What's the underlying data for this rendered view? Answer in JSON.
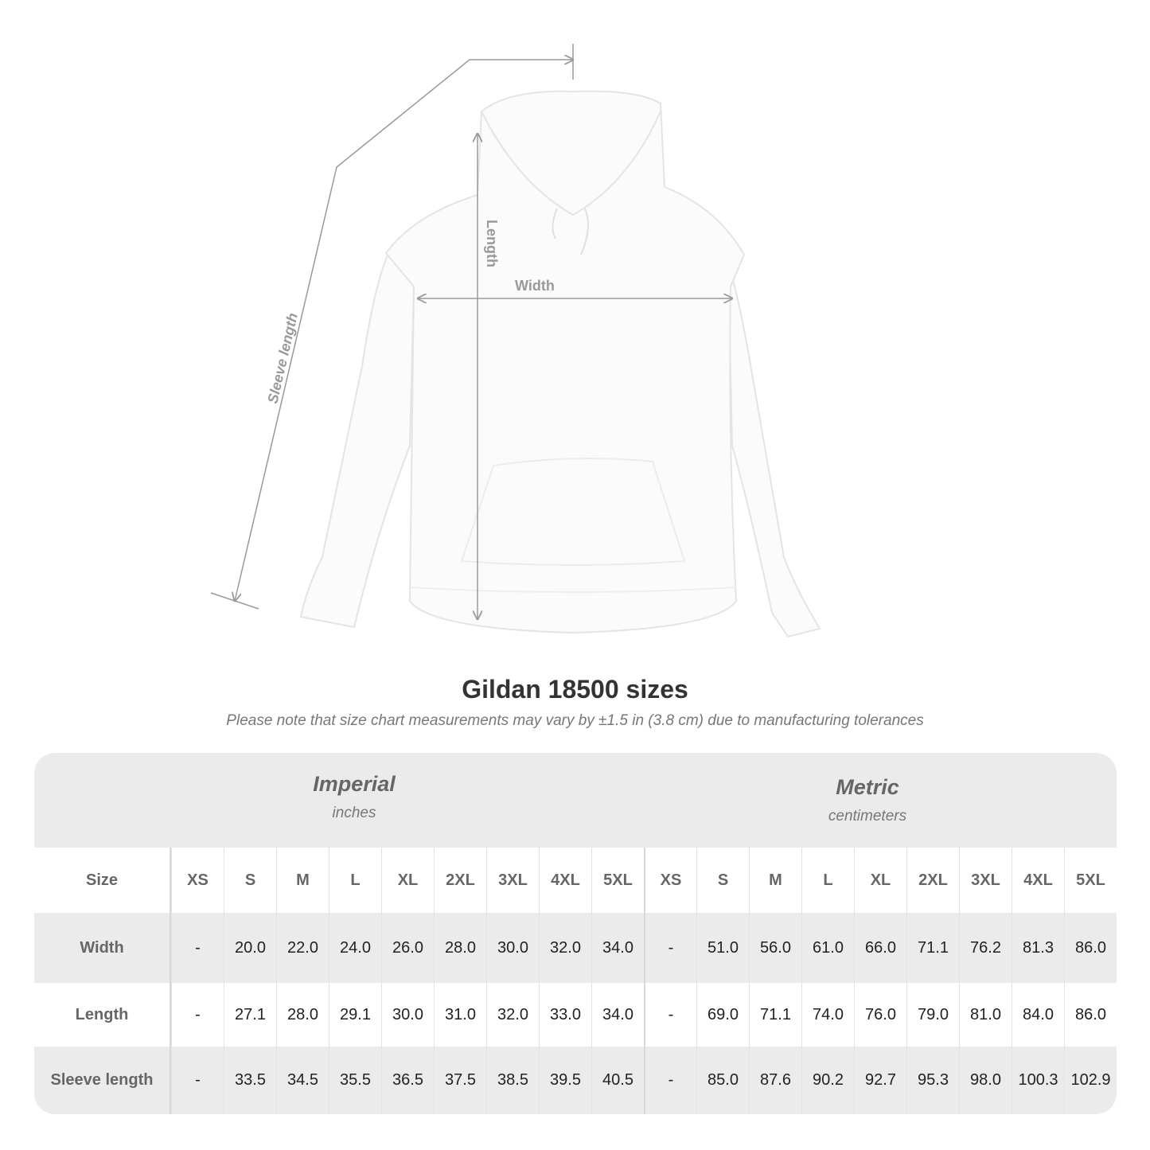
{
  "diagram": {
    "labels": {
      "sleeve": "Sleeve length",
      "length": "Length",
      "width": "Width"
    }
  },
  "header": {
    "title": "Gildan 18500 sizes",
    "note": "Please note that size chart measurements may vary by ±1.5 in (3.8 cm) due to manufacturing tolerances"
  },
  "table": {
    "imperial": {
      "name": "Imperial",
      "unit": "inches"
    },
    "metric": {
      "name": "Metric",
      "unit": "centimeters"
    },
    "size_label": "Size",
    "sizes": [
      "XS",
      "S",
      "M",
      "L",
      "XL",
      "2XL",
      "3XL",
      "4XL",
      "5XL"
    ],
    "rows": [
      {
        "label": "Width",
        "imperial": [
          "-",
          "20.0",
          "22.0",
          "24.0",
          "26.0",
          "28.0",
          "30.0",
          "32.0",
          "34.0"
        ],
        "metric": [
          "-",
          "51.0",
          "56.0",
          "61.0",
          "66.0",
          "71.1",
          "76.2",
          "81.3",
          "86.0"
        ]
      },
      {
        "label": "Length",
        "imperial": [
          "-",
          "27.1",
          "28.0",
          "29.1",
          "30.0",
          "31.0",
          "32.0",
          "33.0",
          "34.0"
        ],
        "metric": [
          "-",
          "69.0",
          "71.1",
          "74.0",
          "76.0",
          "79.0",
          "81.0",
          "84.0",
          "86.0"
        ]
      },
      {
        "label": "Sleeve length",
        "imperial": [
          "-",
          "33.5",
          "34.5",
          "35.5",
          "36.5",
          "37.5",
          "38.5",
          "39.5",
          "40.5"
        ],
        "metric": [
          "-",
          "85.0",
          "87.6",
          "90.2",
          "92.7",
          "95.3",
          "98.0",
          "100.3",
          "102.9"
        ]
      }
    ]
  },
  "colors": {
    "band": "#ebebeb",
    "label_text": "#666666",
    "title": "#333333"
  }
}
